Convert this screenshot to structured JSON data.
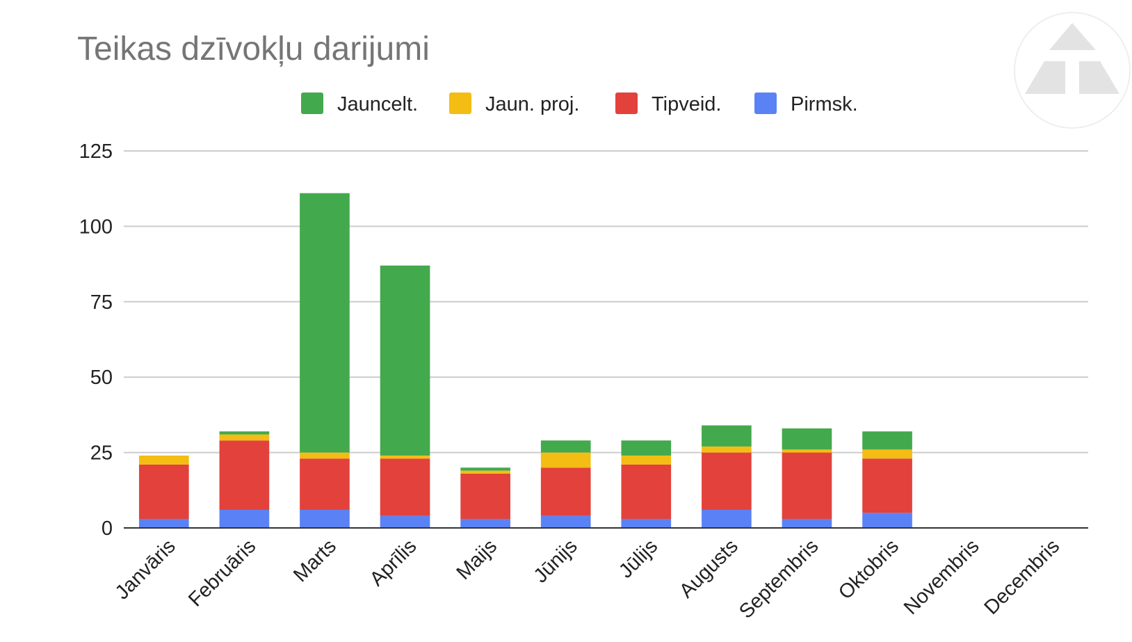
{
  "chart_data": {
    "type": "bar",
    "stacked": true,
    "title": "Teikas dzīvokļu darijumi",
    "xlabel": "",
    "ylabel": "",
    "categories": [
      "Janvāris",
      "Februāris",
      "Marts",
      "Aprīlis",
      "Maijs",
      "Jūnijs",
      "Jūlijs",
      "Augusts",
      "Septembris",
      "Oktobris",
      "Novembris",
      "Decembris"
    ],
    "series": [
      {
        "name": "Pirmsk.",
        "color": "#5b82f5",
        "values": [
          3,
          6,
          6,
          4,
          3,
          4,
          3,
          6,
          3,
          5,
          0,
          0
        ]
      },
      {
        "name": "Tipveid.",
        "color": "#e2423b",
        "values": [
          18,
          23,
          17,
          19,
          15,
          16,
          18,
          19,
          22,
          18,
          0,
          0
        ]
      },
      {
        "name": "Jaun. proj.",
        "color": "#f3bd14",
        "values": [
          3,
          2,
          2,
          1,
          1,
          5,
          3,
          2,
          1,
          3,
          0,
          0
        ]
      },
      {
        "name": "Jauncelt.",
        "color": "#43a94d",
        "values": [
          0,
          1,
          86,
          63,
          1,
          4,
          5,
          7,
          7,
          6,
          0,
          0
        ]
      }
    ],
    "legend_order": [
      "Jauncelt.",
      "Jaun. proj.",
      "Tipveid.",
      "Pirmsk."
    ],
    "legend_position": "top",
    "ylim": [
      0,
      125
    ],
    "yticks": [
      "0",
      "25",
      "50",
      "75",
      "100",
      "125"
    ],
    "grid": true
  },
  "logo": {
    "name": "triangle-logo"
  }
}
